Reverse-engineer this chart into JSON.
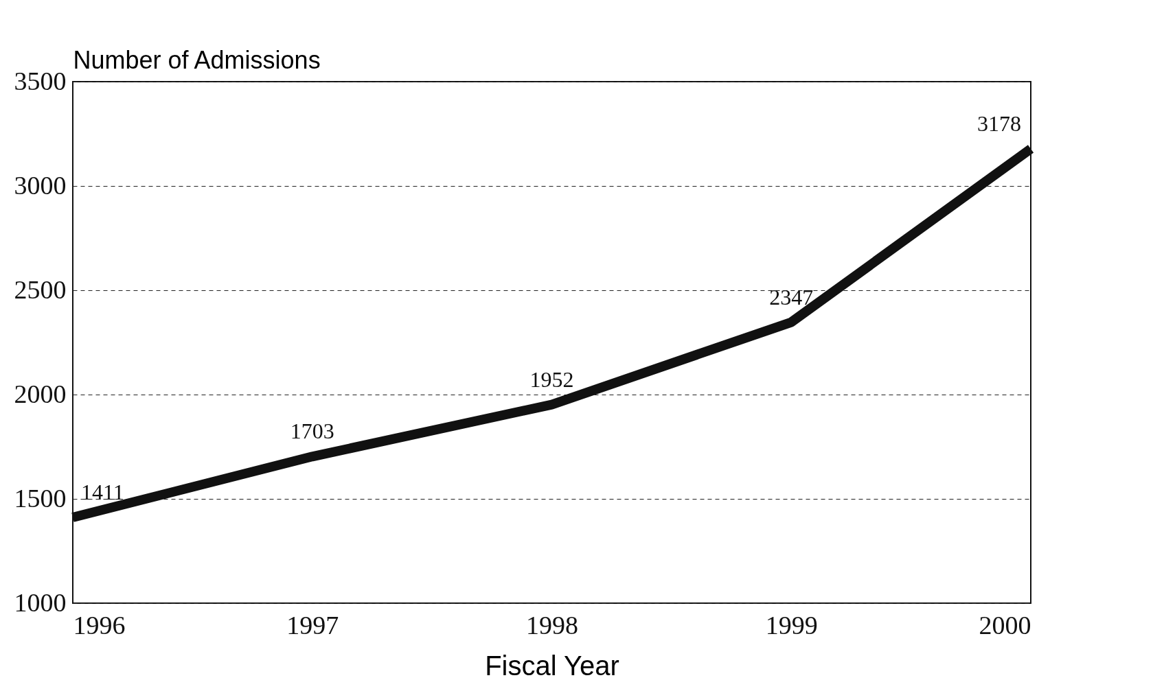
{
  "chart_data": {
    "type": "line",
    "ylabel": "Number of Admissions",
    "xlabel": "Fiscal Year",
    "x": [
      1996,
      1997,
      1998,
      1999,
      2000
    ],
    "series": [
      {
        "color": "#111111",
        "values": [
          1411,
          1703,
          1952,
          2347,
          3178
        ]
      }
    ],
    "xlim": [
      1996,
      2000
    ],
    "xticks": [
      1996,
      1997,
      1998,
      1999,
      2000
    ],
    "ylim": [
      1000,
      3500
    ],
    "yticks": [
      1000,
      1500,
      2000,
      2500,
      3000,
      3500
    ],
    "grid": "y",
    "data_labels": true,
    "marker": "none",
    "line_style": "solid",
    "legend": false
  }
}
